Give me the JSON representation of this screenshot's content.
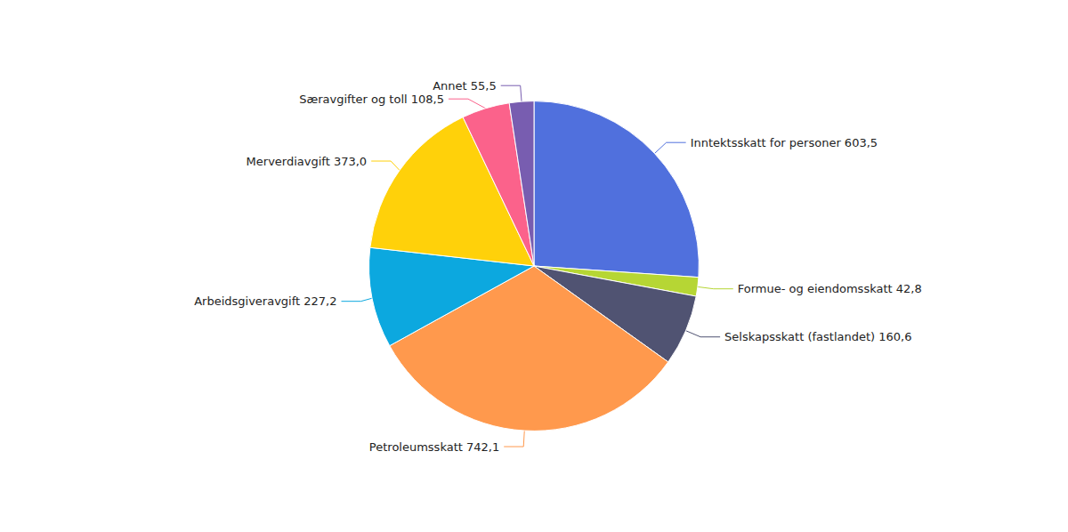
{
  "chart_data": {
    "type": "pie",
    "categories": [
      "Inntektsskatt for personer 603,5",
      "Formue- og eiendomsskatt 42,8",
      "Selskapsskatt (fastlandet) 160,6",
      "Petroleumsskatt 742,1",
      "Arbeidsgiveravgift 227,2",
      "Merverdiavgift 373,0",
      "Særavgifter og toll 108,5",
      "Annet 55,5"
    ],
    "values": [
      603.5,
      42.8,
      160.6,
      742.1,
      227.2,
      373.0,
      108.5,
      55.5
    ]
  }
}
